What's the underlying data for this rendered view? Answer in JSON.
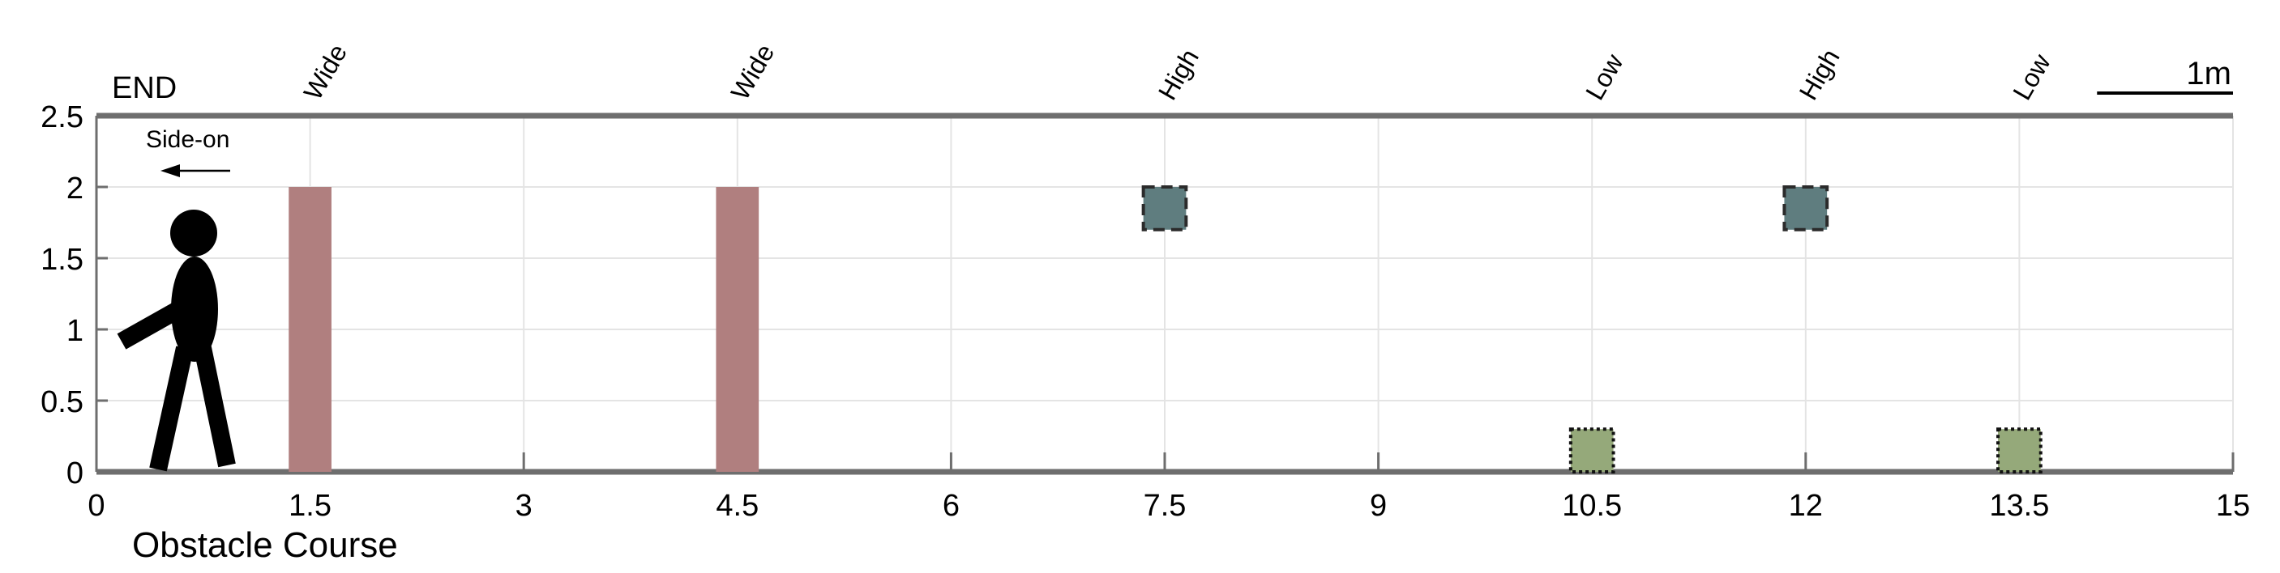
{
  "chart_data": {
    "type": "diagram",
    "xlabel": "Obstacle Course",
    "xlim": [
      0,
      15
    ],
    "ylim": [
      0,
      2.5
    ],
    "xticks": [
      "0",
      "1.5",
      "3",
      "4.5",
      "6",
      "7.5",
      "9",
      "10.5",
      "12",
      "13.5",
      "15"
    ],
    "yticks": [
      "0",
      "0.5",
      "1",
      "1.5",
      "2",
      "2.5"
    ],
    "grid": true,
    "end_label": "END",
    "direction_label": "Side-on",
    "scale_bar": {
      "label": "1m",
      "length": 1
    },
    "obstacles": [
      {
        "label": "Wide",
        "type": "wide",
        "x": 1.5,
        "y_bottom": 0,
        "y_top": 2,
        "width": 0.3
      },
      {
        "label": "Wide",
        "type": "wide",
        "x": 4.5,
        "y_bottom": 0,
        "y_top": 2,
        "width": 0.3
      },
      {
        "label": "High",
        "type": "high",
        "x": 7.5,
        "y_bottom": 1.7,
        "y_top": 2,
        "width": 0.3
      },
      {
        "label": "Low",
        "type": "low",
        "x": 10.5,
        "y_bottom": 0,
        "y_top": 0.3,
        "width": 0.3
      },
      {
        "label": "High",
        "type": "high",
        "x": 12,
        "y_bottom": 1.7,
        "y_top": 2,
        "width": 0.3
      },
      {
        "label": "Low",
        "type": "low",
        "x": 13.5,
        "y_bottom": 0,
        "y_top": 0.3,
        "width": 0.3
      }
    ],
    "colors": {
      "wide": "#b07f7f",
      "high": "#5f7d7f",
      "low": "#95a97a",
      "frame": "#6e6e6e",
      "grid": "#e4e4e4",
      "figure": "#000000"
    }
  }
}
